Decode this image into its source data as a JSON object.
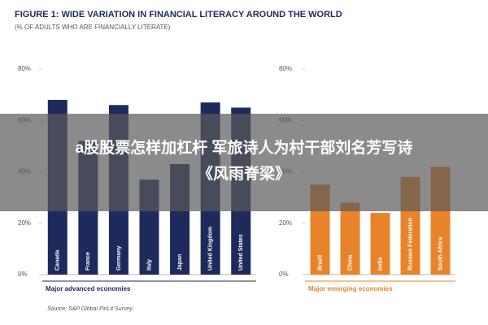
{
  "title": "FIGURE 1: WIDE VARIATION IN FINANCIAL LITERACY AROUND THE WORLD",
  "subtitle": "(% OF ADULTS WHO ARE FINANCIALLY LITERATE)",
  "source": "Source: S&P Global FinLit Survey",
  "overlay": [
    "a股股票怎样加杠杆 军旅诗人为村干部刘名芳写诗",
    "《风雨脊梁》"
  ],
  "chart_data": [
    {
      "type": "bar",
      "xlabel": "Major advanced economies",
      "categories": [
        "Canada",
        "France",
        "Germany",
        "Italy",
        "Japan",
        "United Kingdom",
        "United States"
      ],
      "values": [
        68,
        52,
        66,
        37,
        43,
        67,
        65
      ],
      "color": "#1f2a5c",
      "ylim": [
        0,
        80
      ],
      "yticks": [
        {
          "value": 0,
          "label": "0%"
        },
        {
          "value": 20,
          "label": "20%"
        },
        {
          "value": 40,
          "label": "40%"
        },
        {
          "value": 60,
          "label": "60%"
        },
        {
          "value": 80,
          "label": "80%"
        }
      ]
    },
    {
      "type": "bar",
      "xlabel": "Major emerging economies",
      "categories": [
        "Brazil",
        "China",
        "India",
        "Russian Federation",
        "South Africa"
      ],
      "values": [
        35,
        28,
        24,
        38,
        42
      ],
      "color": "#e8832a",
      "ylim": [
        0,
        80
      ],
      "yticks": [
        {
          "value": 0,
          "label": "0%"
        },
        {
          "value": 20,
          "label": "20%"
        },
        {
          "value": 40,
          "label": "40%"
        },
        {
          "value": 60,
          "label": "60%"
        },
        {
          "value": 80,
          "label": "80%"
        }
      ]
    }
  ]
}
